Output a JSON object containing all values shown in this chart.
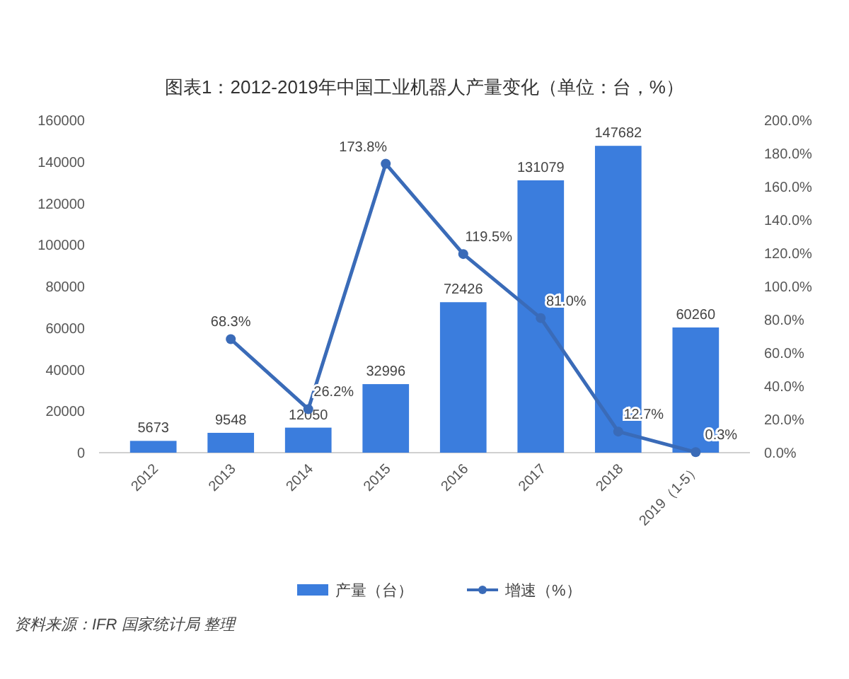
{
  "chart_data": {
    "type": "bar",
    "title": "图表1：2012-2019年中国工业机器人产量变化（单位：台，%）",
    "categories": [
      "2012",
      "2013",
      "2014",
      "2015",
      "2016",
      "2017",
      "2018",
      "2019（1-5）"
    ],
    "series": [
      {
        "name": "产量（台）",
        "color": "#3b7ddd",
        "values": [
          5673,
          9548,
          12050,
          32996,
          72426,
          131079,
          147682,
          60260
        ],
        "value_labels": [
          "5673",
          "9548",
          "12050",
          "32996",
          "72426",
          "131079",
          "147682",
          "60260"
        ]
      },
      {
        "name": "增速（%）",
        "type": "line",
        "axis": "y2",
        "color": "#3a6bb8",
        "marker": "circle",
        "values": [
          null,
          68.3,
          26.2,
          173.8,
          119.5,
          81.0,
          12.7,
          0.3
        ],
        "value_labels": [
          null,
          "68.3%",
          "26.2%",
          "173.8%",
          "119.5%",
          "81.0%",
          "12.7%",
          "0.3%"
        ]
      }
    ],
    "ylim": [
      0,
      160000
    ],
    "yticks": [
      0,
      20000,
      40000,
      60000,
      80000,
      100000,
      120000,
      140000,
      160000
    ],
    "y2lim": [
      0,
      200
    ],
    "y2ticks": [
      {
        "value": 0,
        "label": "0.0%"
      },
      {
        "value": 20,
        "label": "20.0%"
      },
      {
        "value": 40,
        "label": "40.0%"
      },
      {
        "value": 60,
        "label": "60.0%"
      },
      {
        "value": 80,
        "label": "80.0%"
      },
      {
        "value": 100,
        "label": "100.0%"
      },
      {
        "value": 120,
        "label": "120.0%"
      },
      {
        "value": 140,
        "label": "140.0%"
      },
      {
        "value": 160,
        "label": "160.0%"
      },
      {
        "value": 180,
        "label": "180.0%"
      },
      {
        "value": 200,
        "label": "200.0%"
      }
    ],
    "legend": "bottom",
    "annotations": [
      "资料来源：IFR 国家统计局 整理"
    ]
  }
}
